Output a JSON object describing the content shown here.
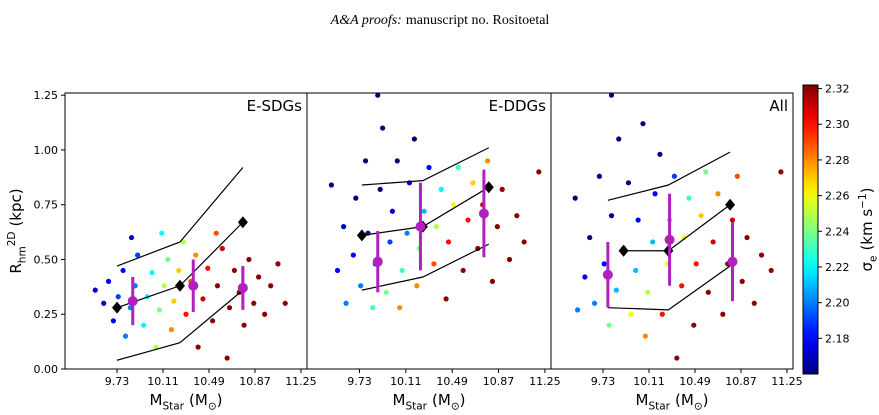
{
  "header": {
    "journal": "A&A proofs:",
    "manuscript": "manuscript no. Rositoetal"
  },
  "chart_data": [
    {
      "type": "scatter",
      "label": "E-SDGs",
      "xlabel": {
        "sym": "M",
        "sub": "Star",
        "unit": "(M",
        "unitsub": "⊙",
        "end": ")"
      },
      "ylabel": {
        "sym": "R",
        "sub": "hm",
        "sup": "2D",
        "unit": "(kpc)"
      },
      "xlim": [
        9.3,
        11.3
      ],
      "ylim": [
        0,
        1.26
      ],
      "xticks": [
        9.73,
        10.11,
        10.49,
        10.87,
        11.25
      ],
      "yticks": [
        {
          "value": 0,
          "label": "0.00"
        },
        0.25,
        {
          "value": 0.5,
          "label": "0.50"
        },
        0.75,
        {
          "value": 1,
          "label": "1.00"
        },
        1.25
      ],
      "colormap": "jet",
      "points": {
        "x": [
          9.55,
          9.62,
          9.66,
          9.7,
          9.74,
          9.78,
          9.8,
          9.84,
          9.88,
          9.9,
          9.95,
          9.98,
          10.02,
          10.05,
          10.08,
          10.12,
          10.15,
          10.18,
          10.2,
          10.24,
          10.28,
          10.3,
          10.34,
          10.38,
          10.4,
          10.44,
          10.48,
          10.52,
          10.56,
          10.6,
          10.64,
          10.66,
          10.7,
          10.74,
          10.78,
          10.82,
          10.86,
          10.9,
          10.95,
          11.0,
          11.06,
          11.12,
          10.1,
          9.85,
          10.55
        ],
        "y": [
          0.36,
          0.3,
          0.4,
          0.22,
          0.33,
          0.45,
          0.15,
          0.28,
          0.38,
          0.52,
          0.2,
          0.33,
          0.44,
          0.1,
          0.27,
          0.38,
          0.5,
          0.18,
          0.31,
          0.45,
          0.58,
          0.25,
          0.4,
          0.52,
          0.1,
          0.32,
          0.46,
          0.22,
          0.38,
          0.55,
          0.05,
          0.28,
          0.45,
          0.35,
          0.2,
          0.5,
          0.3,
          0.42,
          0.25,
          0.38,
          0.48,
          0.3,
          0.62,
          0.6,
          0.62
        ],
        "c": [
          2.17,
          2.17,
          2.18,
          2.18,
          2.19,
          2.18,
          2.2,
          2.2,
          2.2,
          2.19,
          2.22,
          2.22,
          2.22,
          2.25,
          2.24,
          2.25,
          2.24,
          2.28,
          2.27,
          2.27,
          2.25,
          2.3,
          2.29,
          2.28,
          2.32,
          2.31,
          2.3,
          2.32,
          2.32,
          2.31,
          2.32,
          2.32,
          2.32,
          2.32,
          2.32,
          2.32,
          2.32,
          2.32,
          2.32,
          2.32,
          2.32,
          2.32,
          2.22,
          2.17,
          2.29
        ]
      },
      "median": {
        "x": [
          9.73,
          10.25,
          10.77
        ],
        "y": [
          0.28,
          0.38,
          0.67
        ],
        "color": "#000000"
      },
      "upper": {
        "x": [
          9.73,
          10.25,
          10.77
        ],
        "y": [
          0.47,
          0.58,
          0.92
        ],
        "color": "#000000"
      },
      "lower": {
        "x": [
          9.73,
          10.25,
          10.77
        ],
        "y": [
          0.04,
          0.12,
          0.36
        ],
        "color": "#000000"
      },
      "binned": {
        "x": [
          9.86,
          10.36,
          10.77
        ],
        "y": [
          0.31,
          0.38,
          0.37
        ],
        "err": [
          0.11,
          0.12,
          0.1
        ],
        "color": "#b21fbf"
      }
    },
    {
      "type": "scatter",
      "label": "E-DDGs",
      "xlabel": {
        "sym": "M",
        "sub": "Star",
        "unit": "(M",
        "unitsub": "⊙",
        "end": ")"
      },
      "xlim": [
        9.3,
        11.3
      ],
      "ylim": [
        0,
        1.26
      ],
      "xticks": [
        9.73,
        10.11,
        10.49,
        10.87,
        11.25
      ],
      "colormap": "jet",
      "points": {
        "x": [
          9.5,
          9.55,
          9.6,
          9.62,
          9.68,
          9.7,
          9.74,
          9.78,
          9.8,
          9.84,
          9.86,
          9.9,
          9.92,
          9.95,
          9.98,
          10.0,
          10.04,
          10.06,
          10.08,
          10.12,
          10.14,
          10.18,
          10.2,
          10.22,
          10.26,
          10.3,
          10.34,
          10.36,
          10.4,
          10.44,
          10.46,
          10.5,
          10.54,
          10.58,
          10.62,
          10.66,
          10.7,
          10.74,
          10.78,
          10.82,
          10.86,
          10.9,
          10.96,
          11.02,
          11.08,
          11.2,
          9.88
        ],
        "y": [
          0.84,
          0.45,
          0.65,
          0.3,
          0.52,
          0.78,
          0.38,
          0.95,
          0.62,
          0.28,
          0.48,
          0.82,
          1.1,
          0.35,
          0.58,
          0.72,
          0.95,
          0.28,
          0.45,
          0.62,
          0.85,
          1.05,
          0.38,
          0.55,
          0.72,
          0.92,
          0.48,
          0.65,
          0.82,
          0.32,
          0.58,
          0.75,
          0.92,
          0.45,
          0.68,
          0.85,
          0.55,
          0.75,
          0.95,
          0.4,
          0.65,
          0.82,
          0.5,
          0.7,
          0.58,
          0.9,
          1.25
        ],
        "c": [
          2.16,
          2.18,
          2.17,
          2.2,
          2.18,
          2.16,
          2.2,
          2.16,
          2.17,
          2.23,
          2.19,
          2.16,
          2.16,
          2.24,
          2.19,
          2.17,
          2.16,
          2.28,
          2.23,
          2.2,
          2.17,
          2.16,
          2.28,
          2.24,
          2.21,
          2.18,
          2.29,
          2.25,
          2.22,
          2.32,
          2.3,
          2.26,
          2.23,
          2.32,
          2.3,
          2.27,
          2.32,
          2.31,
          2.28,
          2.32,
          2.32,
          2.32,
          2.32,
          2.32,
          2.32,
          2.32,
          2.16
        ]
      },
      "median": {
        "x": [
          9.75,
          10.25,
          10.79
        ],
        "y": [
          0.61,
          0.65,
          0.83
        ],
        "color": "#000000"
      },
      "upper": {
        "x": [
          9.75,
          10.25,
          10.79
        ],
        "y": [
          0.84,
          0.86,
          1.01
        ],
        "color": "#000000"
      },
      "lower": {
        "x": [
          9.75,
          10.25,
          10.79
        ],
        "y": [
          0.36,
          0.42,
          0.57
        ],
        "color": "#000000"
      },
      "binned": {
        "x": [
          9.88,
          10.23,
          10.75
        ],
        "y": [
          0.49,
          0.65,
          0.71
        ],
        "err": [
          0.14,
          0.2,
          0.2
        ],
        "color": "#b21fbf"
      }
    },
    {
      "type": "scatter",
      "label": "All",
      "xlabel": {
        "sym": "M",
        "sub": "Star",
        "unit": "(M",
        "unitsub": "⊙",
        "end": ")"
      },
      "xlim": [
        9.3,
        11.3
      ],
      "ylim": [
        0,
        1.26
      ],
      "xticks": [
        9.73,
        10.11,
        10.49,
        10.87,
        11.25
      ],
      "colormap": "jet",
      "points": {
        "x": [
          9.5,
          9.52,
          9.58,
          9.62,
          9.66,
          9.7,
          9.74,
          9.78,
          9.8,
          9.84,
          9.86,
          9.9,
          9.94,
          9.96,
          10.0,
          10.02,
          10.06,
          10.08,
          10.1,
          10.14,
          10.16,
          10.2,
          10.22,
          10.26,
          10.28,
          10.32,
          10.34,
          10.38,
          10.4,
          10.44,
          10.48,
          10.5,
          10.54,
          10.58,
          10.6,
          10.64,
          10.68,
          10.72,
          10.76,
          10.8,
          10.84,
          10.88,
          10.92,
          10.98,
          11.04,
          11.12,
          11.2,
          9.8
        ],
        "y": [
          0.78,
          0.27,
          0.42,
          0.6,
          0.3,
          0.88,
          0.48,
          0.2,
          0.7,
          0.36,
          1.05,
          0.55,
          0.85,
          0.25,
          0.45,
          0.68,
          1.12,
          0.15,
          0.35,
          0.58,
          0.8,
          0.98,
          0.25,
          0.48,
          0.68,
          0.88,
          0.05,
          0.38,
          0.6,
          0.78,
          0.2,
          0.48,
          0.7,
          0.9,
          0.35,
          0.58,
          0.8,
          0.25,
          0.48,
          0.68,
          0.88,
          0.4,
          0.6,
          0.3,
          0.52,
          0.45,
          0.9,
          1.25
        ],
        "c": [
          2.16,
          2.2,
          2.18,
          2.16,
          2.2,
          2.16,
          2.18,
          2.24,
          2.16,
          2.21,
          2.16,
          2.18,
          2.16,
          2.26,
          2.21,
          2.18,
          2.16,
          2.28,
          2.25,
          2.21,
          2.18,
          2.16,
          2.3,
          2.26,
          2.22,
          2.19,
          2.32,
          2.3,
          2.26,
          2.23,
          2.32,
          2.3,
          2.27,
          2.24,
          2.32,
          2.31,
          2.28,
          2.32,
          2.32,
          2.31,
          2.29,
          2.32,
          2.32,
          2.32,
          2.32,
          2.32,
          2.32,
          2.16
        ]
      },
      "median": {
        "x": [
          9.9,
          10.27,
          10.78
        ],
        "y": [
          0.54,
          0.54,
          0.75
        ],
        "color": "#000000"
      },
      "upper": {
        "x": [
          9.77,
          10.27,
          10.78
        ],
        "y": [
          0.77,
          0.84,
          0.99
        ],
        "color": "#000000"
      },
      "lower": {
        "x": [
          9.77,
          10.27,
          10.78
        ],
        "y": [
          0.28,
          0.27,
          0.47
        ],
        "color": "#000000"
      },
      "binned": {
        "x": [
          9.77,
          10.28,
          10.8
        ],
        "y": [
          0.43,
          0.59,
          0.49
        ],
        "err": [
          0.15,
          0.21,
          0.18
        ],
        "color": "#b21fbf"
      }
    },
    {
      "type": "colorbar",
      "colormap": "jet",
      "label": {
        "sym": "σ",
        "sub": "e",
        "unit": "(km s",
        "sup": "−1",
        "end": ")"
      },
      "ylim": [
        2.16,
        2.322
      ],
      "yticks": [
        2.18,
        {
          "value": 2.2,
          "label": "2.20"
        },
        2.22,
        2.24,
        2.26,
        2.28,
        {
          "value": 2.3,
          "label": "2.30"
        },
        2.32
      ]
    }
  ]
}
